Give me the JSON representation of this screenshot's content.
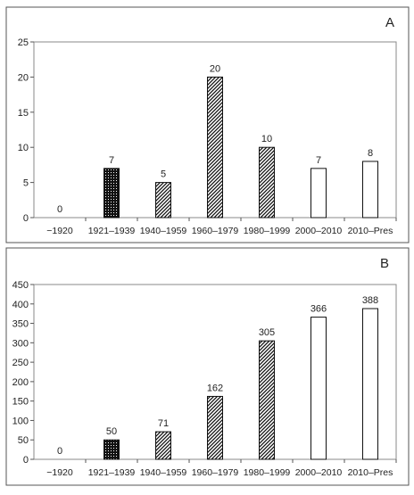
{
  "chart_data": [
    {
      "type": "bar",
      "panel_label": "A",
      "categories": [
        "−1920",
        "1921–1939",
        "1940–1959",
        "1960–1979",
        "1980–1999",
        "2000–2010",
        "2010–Pres"
      ],
      "values": [
        0,
        7,
        5,
        20,
        10,
        7,
        8
      ],
      "data_labels": [
        "0",
        "7",
        "5",
        "20",
        "10",
        "7",
        "8"
      ],
      "fills": [
        "none",
        "dots",
        "diagonal",
        "diagonal",
        "diagonal",
        "white",
        "white"
      ],
      "ylim": [
        0,
        25
      ],
      "yticks": [
        0,
        5,
        10,
        15,
        20,
        25
      ],
      "grid": false
    },
    {
      "type": "bar",
      "panel_label": "B",
      "categories": [
        "−1920",
        "1921–1939",
        "1940–1959",
        "1960–1979",
        "1980–1999",
        "2000–2010",
        "2010–Pres"
      ],
      "values": [
        0,
        50,
        71,
        162,
        305,
        366,
        388
      ],
      "data_labels": [
        "0",
        "50",
        "71",
        "162",
        "305",
        "366",
        "388"
      ],
      "fills": [
        "none",
        "dots",
        "diagonal",
        "diagonal",
        "diagonal",
        "white",
        "white"
      ],
      "ylim": [
        0,
        450
      ],
      "yticks": [
        0,
        50,
        100,
        150,
        200,
        250,
        300,
        350,
        400,
        450
      ],
      "grid": false
    }
  ]
}
